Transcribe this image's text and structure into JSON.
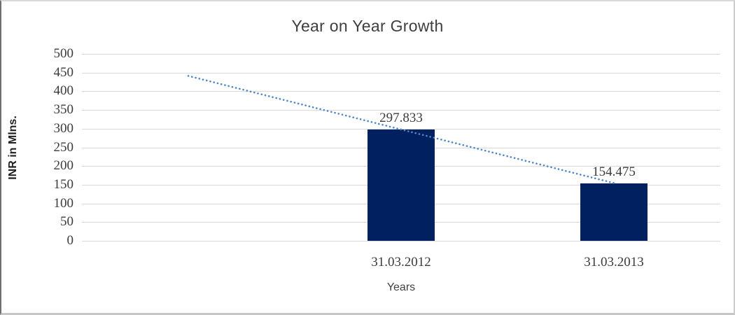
{
  "chart_data": {
    "type": "bar",
    "title": "Year on Year Growth",
    "xlabel": "Years",
    "ylabel": "INR in Mlns.",
    "categories": [
      "",
      "31.03.2012",
      "31.03.2013"
    ],
    "values": [
      null,
      297.833,
      154.475
    ],
    "value_labels": [
      "",
      "297.833",
      "154.475"
    ],
    "ylim": [
      0,
      500
    ],
    "ytick_step": 50,
    "ytick_labels": [
      "500",
      "450",
      "400",
      "350",
      "300",
      "250",
      "200",
      "150",
      "100",
      "50",
      "0"
    ],
    "grid": "horizontal-only",
    "legend": "none",
    "bar_color": "#002060",
    "gridline_color": "#d9d9d9",
    "trendline": {
      "type": "linear",
      "style": "dotted",
      "color": "#4f86c8",
      "slots": [
        0,
        2
      ],
      "values": [
        441.19,
        154.475
      ]
    }
  }
}
